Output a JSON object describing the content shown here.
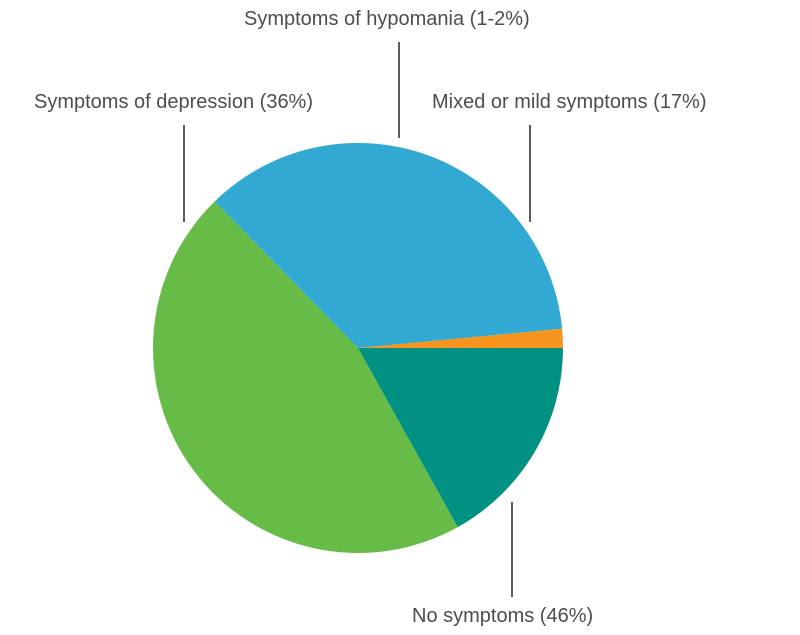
{
  "chart_data": {
    "type": "pie",
    "title": "",
    "slices": [
      {
        "key": "mixed",
        "label": "Mixed or mild symptoms (17%)",
        "value": 17,
        "color": "#009183"
      },
      {
        "key": "none",
        "label": "No symptoms (46%)",
        "value": 46,
        "color": "#66bc47"
      },
      {
        "key": "depression",
        "label": "Symptoms of depression (36%)",
        "value": 36,
        "color": "#31a9d3"
      },
      {
        "key": "hypomania",
        "label": "Symptoms of hypomania (1-2%)",
        "value": 1.5,
        "color": "#f7941d"
      }
    ],
    "start_angle_deg": 0,
    "direction": "clockwise",
    "legend": "none",
    "labels": "outside with leader lines"
  }
}
